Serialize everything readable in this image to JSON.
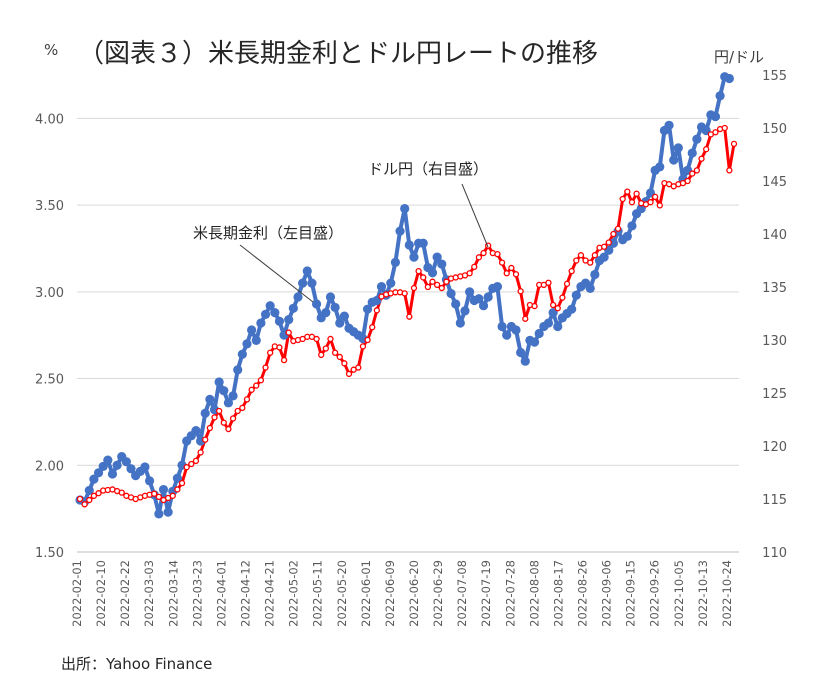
{
  "chart_data": {
    "type": "line",
    "title": "（図表３）米長期金利とドル円レートの推移",
    "left_unit": "%",
    "right_unit": "円/ドル",
    "y_left_range": [
      1.5,
      4.25
    ],
    "y_right_range": [
      110,
      155
    ],
    "y_left_ticks": [
      "1.50",
      "2.00",
      "2.50",
      "3.00",
      "3.50",
      "4.00"
    ],
    "y_right_ticks": [
      "110",
      "115",
      "120",
      "125",
      "130",
      "135",
      "140",
      "145",
      "150",
      "155"
    ],
    "x_labels": [
      "2022-02-01",
      "2022-02-10",
      "2022-02-22",
      "2022-03-03",
      "2022-03-14",
      "2022-03-23",
      "2022-04-01",
      "2022-04-12",
      "2022-04-21",
      "2022-05-02",
      "2022-05-11",
      "2022-05-20",
      "2022-06-01",
      "2022-06-09",
      "2022-06-20",
      "2022-06-29",
      "2022-07-08",
      "2022-07-19",
      "2022-07-28",
      "2022-08-08",
      "2022-08-17",
      "2022-08-26",
      "2022-09-06",
      "2022-09-15",
      "2022-09-26",
      "2022-10-05",
      "2022-10-13",
      "2022-10-24"
    ],
    "annotations": {
      "rate_label": "米長期金利（左目盛）",
      "fx_label": "ドル円（右目盛）"
    },
    "source": "出所：Yahoo Finance",
    "series": [
      {
        "name": "米長期金利（左目盛）",
        "axis": "left",
        "color": "#4472c4",
        "anchors": [
          [
            0,
            1.8
          ],
          [
            1,
            1.79
          ],
          [
            3,
            1.92
          ],
          [
            6,
            2.03
          ],
          [
            7,
            1.95
          ],
          [
            9,
            2.05
          ],
          [
            10,
            2.02
          ],
          [
            12,
            1.94
          ],
          [
            14,
            1.99
          ],
          [
            16,
            1.83
          ],
          [
            17,
            1.72
          ],
          [
            18,
            1.86
          ],
          [
            19,
            1.73
          ],
          [
            20,
            1.85
          ],
          [
            22,
            2.0
          ],
          [
            23,
            2.14
          ],
          [
            25,
            2.2
          ],
          [
            26,
            2.14
          ],
          [
            27,
            2.3
          ],
          [
            28,
            2.38
          ],
          [
            29,
            2.32
          ],
          [
            30,
            2.48
          ],
          [
            31,
            2.43
          ],
          [
            32,
            2.36
          ],
          [
            33,
            2.4
          ],
          [
            34,
            2.55
          ],
          [
            35,
            2.64
          ],
          [
            36,
            2.7
          ],
          [
            37,
            2.78
          ],
          [
            38,
            2.72
          ],
          [
            39,
            2.82
          ],
          [
            41,
            2.92
          ],
          [
            42,
            2.88
          ],
          [
            43,
            2.83
          ],
          [
            44,
            2.75
          ],
          [
            45,
            2.84
          ],
          [
            47,
            2.97
          ],
          [
            48,
            3.05
          ],
          [
            49,
            3.12
          ],
          [
            50,
            3.05
          ],
          [
            51,
            2.93
          ],
          [
            52,
            2.85
          ],
          [
            53,
            2.88
          ],
          [
            54,
            2.97
          ],
          [
            55,
            2.91
          ],
          [
            56,
            2.82
          ],
          [
            57,
            2.86
          ],
          [
            58,
            2.79
          ],
          [
            60,
            2.75
          ],
          [
            61,
            2.73
          ],
          [
            62,
            2.9
          ],
          [
            63,
            2.94
          ],
          [
            64,
            2.95
          ],
          [
            65,
            3.03
          ],
          [
            66,
            2.98
          ],
          [
            67,
            3.05
          ],
          [
            68,
            3.17
          ],
          [
            69,
            3.35
          ],
          [
            70,
            3.48
          ],
          [
            71,
            3.27
          ],
          [
            72,
            3.2
          ],
          [
            73,
            3.28
          ],
          [
            74,
            3.28
          ],
          [
            75,
            3.14
          ],
          [
            76,
            3.11
          ],
          [
            77,
            3.2
          ],
          [
            78,
            3.16
          ],
          [
            79,
            3.07
          ],
          [
            80,
            2.99
          ],
          [
            81,
            2.93
          ],
          [
            82,
            2.82
          ],
          [
            83,
            2.89
          ],
          [
            84,
            3.0
          ],
          [
            85,
            2.95
          ],
          [
            86,
            2.96
          ],
          [
            87,
            2.92
          ],
          [
            88,
            2.97
          ],
          [
            89,
            3.02
          ],
          [
            90,
            3.03
          ],
          [
            91,
            2.8
          ],
          [
            92,
            2.75
          ],
          [
            93,
            2.8
          ],
          [
            94,
            2.78
          ],
          [
            95,
            2.65
          ],
          [
            96,
            2.6
          ],
          [
            97,
            2.72
          ],
          [
            98,
            2.71
          ],
          [
            99,
            2.76
          ],
          [
            100,
            2.8
          ],
          [
            101,
            2.82
          ],
          [
            102,
            2.88
          ],
          [
            103,
            2.8
          ],
          [
            104,
            2.85
          ],
          [
            106,
            2.9
          ],
          [
            107,
            2.98
          ],
          [
            108,
            3.03
          ],
          [
            109,
            3.05
          ],
          [
            110,
            3.02
          ],
          [
            111,
            3.1
          ],
          [
            112,
            3.18
          ],
          [
            113,
            3.2
          ],
          [
            114,
            3.24
          ],
          [
            115,
            3.28
          ],
          [
            116,
            3.35
          ],
          [
            117,
            3.3
          ],
          [
            118,
            3.32
          ],
          [
            119,
            3.38
          ],
          [
            120,
            3.45
          ],
          [
            121,
            3.48
          ],
          [
            122,
            3.52
          ],
          [
            123,
            3.57
          ],
          [
            124,
            3.7
          ],
          [
            125,
            3.72
          ],
          [
            126,
            3.93
          ],
          [
            127,
            3.96
          ],
          [
            128,
            3.76
          ],
          [
            129,
            3.83
          ],
          [
            130,
            3.65
          ],
          [
            131,
            3.7
          ],
          [
            132,
            3.8
          ],
          [
            133,
            3.88
          ],
          [
            134,
            3.95
          ],
          [
            135,
            3.93
          ],
          [
            136,
            4.02
          ],
          [
            137,
            4.01
          ],
          [
            138,
            4.13
          ],
          [
            139,
            4.24
          ],
          [
            140,
            4.23
          ]
        ]
      },
      {
        "name": "ドル円（右目盛）",
        "axis": "right",
        "color": "#ff0000",
        "anchors": [
          [
            0,
            115.0
          ],
          [
            1,
            114.5
          ],
          [
            3,
            115.3
          ],
          [
            5,
            115.8
          ],
          [
            7,
            115.9
          ],
          [
            9,
            115.6
          ],
          [
            10,
            115.3
          ],
          [
            12,
            115.0
          ],
          [
            14,
            115.3
          ],
          [
            16,
            115.5
          ],
          [
            17,
            115.2
          ],
          [
            18,
            114.9
          ],
          [
            20,
            115.3
          ],
          [
            22,
            116.5
          ],
          [
            23,
            118.0
          ],
          [
            24,
            118.3
          ],
          [
            25,
            118.6
          ],
          [
            26,
            119.4
          ],
          [
            27,
            120.6
          ],
          [
            28,
            121.7
          ],
          [
            29,
            122.7
          ],
          [
            30,
            123.3
          ],
          [
            31,
            122.2
          ],
          [
            32,
            121.6
          ],
          [
            33,
            122.6
          ],
          [
            34,
            123.3
          ],
          [
            35,
            123.6
          ],
          [
            36,
            124.4
          ],
          [
            37,
            125.3
          ],
          [
            38,
            125.7
          ],
          [
            39,
            126.2
          ],
          [
            40,
            127.4
          ],
          [
            41,
            128.8
          ],
          [
            42,
            129.4
          ],
          [
            43,
            129.3
          ],
          [
            44,
            128.1
          ],
          [
            45,
            130.7
          ],
          [
            46,
            129.9
          ],
          [
            47,
            130.0
          ],
          [
            48,
            130.1
          ],
          [
            49,
            130.3
          ],
          [
            50,
            130.3
          ],
          [
            51,
            130.1
          ],
          [
            52,
            128.6
          ],
          [
            53,
            129.2
          ],
          [
            54,
            130.1
          ],
          [
            55,
            128.8
          ],
          [
            56,
            128.4
          ],
          [
            57,
            127.8
          ],
          [
            58,
            126.8
          ],
          [
            59,
            127.2
          ],
          [
            60,
            127.4
          ],
          [
            61,
            129.4
          ],
          [
            62,
            130.0
          ],
          [
            63,
            131.2
          ],
          [
            64,
            132.8
          ],
          [
            65,
            134.1
          ],
          [
            66,
            134.3
          ],
          [
            67,
            134.4
          ],
          [
            68,
            134.5
          ],
          [
            69,
            134.5
          ],
          [
            70,
            134.4
          ],
          [
            71,
            132.2
          ],
          [
            72,
            134.9
          ],
          [
            73,
            136.5
          ],
          [
            74,
            135.9
          ],
          [
            75,
            135.0
          ],
          [
            76,
            135.5
          ],
          [
            77,
            135.2
          ],
          [
            78,
            134.9
          ],
          [
            79,
            135.5
          ],
          [
            80,
            135.8
          ],
          [
            81,
            135.9
          ],
          [
            82,
            136.0
          ],
          [
            83,
            136.1
          ],
          [
            84,
            136.3
          ],
          [
            85,
            136.9
          ],
          [
            86,
            137.8
          ],
          [
            87,
            138.2
          ],
          [
            88,
            138.9
          ],
          [
            89,
            138.2
          ],
          [
            90,
            138.1
          ],
          [
            91,
            137.3
          ],
          [
            92,
            136.3
          ],
          [
            93,
            136.8
          ],
          [
            94,
            136.2
          ],
          [
            95,
            134.6
          ],
          [
            96,
            132.0
          ],
          [
            97,
            133.3
          ],
          [
            98,
            133.2
          ],
          [
            99,
            135.2
          ],
          [
            100,
            135.2
          ],
          [
            101,
            135.4
          ],
          [
            102,
            133.3
          ],
          [
            103,
            133.0
          ],
          [
            104,
            134.0
          ],
          [
            105,
            135.3
          ],
          [
            106,
            136.5
          ],
          [
            107,
            137.5
          ],
          [
            108,
            138.0
          ],
          [
            109,
            137.5
          ],
          [
            110,
            137.3
          ],
          [
            111,
            138.0
          ],
          [
            112,
            138.7
          ],
          [
            113,
            138.8
          ],
          [
            114,
            139.2
          ],
          [
            115,
            140.0
          ],
          [
            116,
            140.5
          ],
          [
            117,
            143.3
          ],
          [
            118,
            144.0
          ],
          [
            119,
            143.0
          ],
          [
            120,
            143.8
          ],
          [
            121,
            142.9
          ],
          [
            122,
            142.8
          ],
          [
            123,
            143.0
          ],
          [
            124,
            143.5
          ],
          [
            125,
            142.7
          ],
          [
            126,
            144.8
          ],
          [
            127,
            144.7
          ],
          [
            128,
            144.5
          ],
          [
            129,
            144.7
          ],
          [
            130,
            144.8
          ],
          [
            131,
            145.0
          ],
          [
            132,
            145.7
          ],
          [
            133,
            146.0
          ],
          [
            134,
            147.1
          ],
          [
            135,
            148.0
          ],
          [
            136,
            149.4
          ],
          [
            137,
            149.6
          ],
          [
            138,
            149.9
          ],
          [
            139,
            150.0
          ],
          [
            140,
            146.0
          ],
          [
            141,
            148.5
          ]
        ]
      }
    ]
  }
}
